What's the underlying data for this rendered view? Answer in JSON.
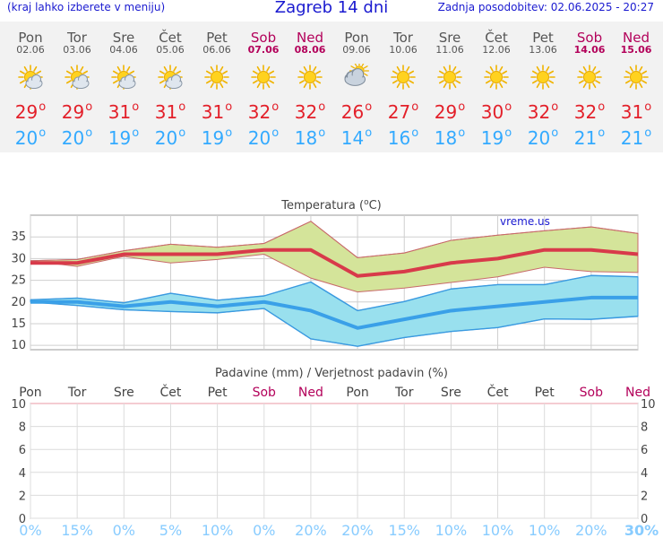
{
  "header": {
    "menu_hint": "(kraj lahko izberete v meniju)",
    "title": "Zagreb 14 dni",
    "last_update": "Zadnja posodobitev: 02.06.2025 - 20:27"
  },
  "days": [
    {
      "name": "Pon",
      "date": "02.06",
      "weekend": false,
      "icon": "sun-cloud-icon",
      "tmax": "29",
      "tmin": "20"
    },
    {
      "name": "Tor",
      "date": "03.06",
      "weekend": false,
      "icon": "sun-cloud-icon",
      "tmax": "29",
      "tmin": "20"
    },
    {
      "name": "Sre",
      "date": "04.06",
      "weekend": false,
      "icon": "sun-cloud-icon",
      "tmax": "31",
      "tmin": "19"
    },
    {
      "name": "Čet",
      "date": "05.06",
      "weekend": false,
      "icon": "sun-cloud-icon",
      "tmax": "31",
      "tmin": "20"
    },
    {
      "name": "Pet",
      "date": "06.06",
      "weekend": false,
      "icon": "sun-icon",
      "tmax": "31",
      "tmin": "19"
    },
    {
      "name": "Sob",
      "date": "07.06",
      "weekend": true,
      "icon": "sun-icon",
      "tmax": "32",
      "tmin": "20"
    },
    {
      "name": "Ned",
      "date": "08.06",
      "weekend": true,
      "icon": "sun-icon",
      "tmax": "32",
      "tmin": "18"
    },
    {
      "name": "Pon",
      "date": "09.06",
      "weekend": false,
      "icon": "cloud-sun-icon",
      "tmax": "26",
      "tmin": "14"
    },
    {
      "name": "Tor",
      "date": "10.06",
      "weekend": false,
      "icon": "sun-icon",
      "tmax": "27",
      "tmin": "16"
    },
    {
      "name": "Sre",
      "date": "11.06",
      "weekend": false,
      "icon": "sun-icon",
      "tmax": "29",
      "tmin": "18"
    },
    {
      "name": "Čet",
      "date": "12.06",
      "weekend": false,
      "icon": "sun-icon",
      "tmax": "30",
      "tmin": "19"
    },
    {
      "name": "Pet",
      "date": "13.06",
      "weekend": false,
      "icon": "sun-icon",
      "tmax": "32",
      "tmin": "20"
    },
    {
      "name": "Sob",
      "date": "14.06",
      "weekend": true,
      "icon": "sun-icon",
      "tmax": "32",
      "tmin": "21"
    },
    {
      "name": "Ned",
      "date": "15.06",
      "weekend": true,
      "icon": "sun-icon",
      "tmax": "31",
      "tmin": "21"
    }
  ],
  "degree_symbol": "o",
  "colors": {
    "title_blue": "#1a1ad0",
    "weekend": "#b3005a",
    "tmax": "#e3202a",
    "tmin": "#33aaff",
    "max_band": "#d4e49a",
    "min_band": "#99e0ee",
    "max_line": "#d83a4a",
    "min_line": "#3aa0e8",
    "prob_text": "#88ccff"
  },
  "chart_data": [
    {
      "type": "line",
      "title": "Temperatura (",
      "title_degree": "o",
      "title_unit": "C)",
      "watermark": "vreme.us",
      "ylim": [
        9,
        40
      ],
      "yticks": [
        10,
        15,
        20,
        25,
        30,
        35
      ],
      "grid": true,
      "series": [
        {
          "role": "max",
          "values": [
            29,
            29,
            31,
            31,
            31,
            32,
            32,
            26,
            27,
            29,
            30,
            32,
            32,
            31
          ],
          "band_low": [
            29.5,
            28.2,
            30.5,
            29,
            29.8,
            31,
            25.5,
            22.3,
            23.2,
            24.5,
            25.8,
            28,
            27,
            26.8
          ],
          "band_high": [
            29.5,
            29.8,
            31.8,
            33.3,
            32.6,
            33.5,
            38.6,
            30.2,
            31.3,
            34.2,
            35.4,
            36.4,
            37.3,
            35.8
          ]
        },
        {
          "role": "min",
          "values": [
            20,
            20,
            19,
            20,
            19,
            20,
            18,
            14,
            16,
            18,
            19,
            20,
            21,
            21
          ],
          "band_low": [
            20,
            19.2,
            18.2,
            17.8,
            17.5,
            18.5,
            11.5,
            9.8,
            11.8,
            13.2,
            14.1,
            16.1,
            16,
            16.7
          ],
          "band_high": [
            20.5,
            20.9,
            19.8,
            22,
            20.4,
            21.4,
            24.6,
            18,
            20.1,
            23,
            24,
            24,
            26.1,
            25.8
          ]
        }
      ]
    },
    {
      "type": "bar",
      "title": "Padavine (mm) / Verjetnost padavin (%)",
      "ylim": [
        0,
        10
      ],
      "yticks": [
        0,
        2,
        4,
        6,
        8,
        10
      ],
      "precip_mm": [
        0,
        0,
        0,
        0,
        0,
        0,
        0,
        0,
        0,
        0,
        0,
        0,
        0,
        0
      ],
      "probability": [
        "0%",
        "15%",
        "0%",
        "5%",
        "10%",
        "0%",
        "20%",
        "20%",
        "15%",
        "10%",
        "10%",
        "10%",
        "20%",
        "30%"
      ]
    }
  ]
}
